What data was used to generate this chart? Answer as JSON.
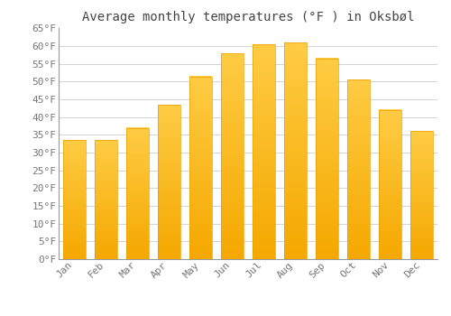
{
  "title": "Average monthly temperatures (°F ) in Oksbøl",
  "months": [
    "Jan",
    "Feb",
    "Mar",
    "Apr",
    "May",
    "Jun",
    "Jul",
    "Aug",
    "Sep",
    "Oct",
    "Nov",
    "Dec"
  ],
  "values": [
    33.5,
    33.5,
    37.0,
    43.5,
    51.5,
    58.0,
    60.5,
    61.0,
    56.5,
    50.5,
    42.0,
    36.0
  ],
  "bar_color_top": "#FFCC44",
  "bar_color_bottom": "#F5A800",
  "bar_edge_color": "#E8A000",
  "ylim": [
    0,
    65
  ],
  "yticks": [
    0,
    5,
    10,
    15,
    20,
    25,
    30,
    35,
    40,
    45,
    50,
    55,
    60,
    65
  ],
  "ytick_labels": [
    "0°F",
    "5°F",
    "10°F",
    "15°F",
    "20°F",
    "25°F",
    "30°F",
    "35°F",
    "40°F",
    "45°F",
    "50°F",
    "55°F",
    "60°F",
    "65°F"
  ],
  "bg_color": "#FFFFFF",
  "plot_bg_color": "#FFFFFF",
  "grid_color": "#CCCCCC",
  "title_fontsize": 10,
  "tick_fontsize": 8,
  "tick_color": "#777777",
  "title_color": "#444444",
  "bar_width": 0.7,
  "left_spine_color": "#999999",
  "bottom_spine_color": "#999999"
}
